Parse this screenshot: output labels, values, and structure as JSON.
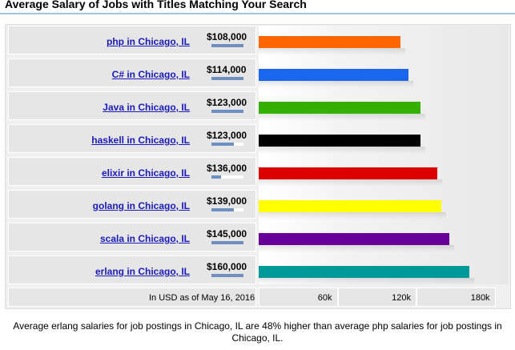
{
  "title": "Average Salary of Jobs with Titles Matching Your Search",
  "chart_data": {
    "type": "bar",
    "orientation": "horizontal",
    "categories": [
      "php in Chicago, IL",
      "C# in Chicago, IL",
      "Java in Chicago, IL",
      "haskell in Chicago, IL",
      "elixir in Chicago, IL",
      "golang in Chicago, IL",
      "scala in Chicago, IL",
      "erlang in Chicago, IL"
    ],
    "values": [
      108000,
      114000,
      123000,
      123000,
      136000,
      139000,
      145000,
      160000
    ],
    "value_labels": [
      "$108,000",
      "$114,000",
      "$123,000",
      "$123,000",
      "$136,000",
      "$139,000",
      "$145,000",
      "$160,000"
    ],
    "mini_bar_fractions": [
      1.0,
      1.0,
      1.0,
      0.7,
      0.3,
      0.7,
      1.0,
      1.0
    ],
    "colors": [
      "#ff6600",
      "#1a66ee",
      "#33b000",
      "#000000",
      "#dd0000",
      "#ffff00",
      "#660099",
      "#009999"
    ],
    "xlim": [
      0,
      190000
    ],
    "x_ticks": [
      60000,
      120000,
      180000
    ],
    "x_tick_labels": [
      "60k",
      "120k",
      "180k"
    ],
    "footer_note": "In USD as of May 16, 2016",
    "grid": false
  },
  "summary": "Average erlang salaries for job postings in Chicago, IL are 48% higher than average php salaries for job postings in Chicago, IL."
}
